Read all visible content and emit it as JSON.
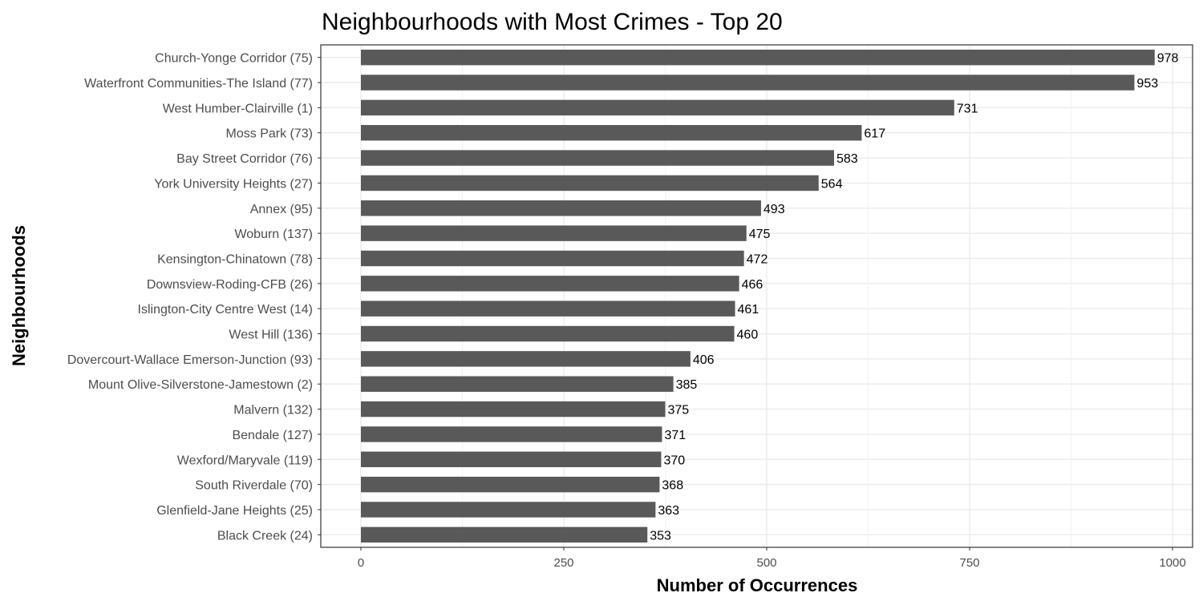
{
  "chart_data": {
    "type": "bar",
    "orientation": "horizontal",
    "title": "Neighbourhoods with Most Crimes - Top 20",
    "xlabel": "Number of Occurrences",
    "ylabel": "Neighbourhoods",
    "xlim": [
      0,
      1000
    ],
    "xticks": [
      0,
      250,
      500,
      750,
      1000
    ],
    "grid": true,
    "bar_color": "#595959",
    "categories": [
      "Church-Yonge Corridor (75)",
      "Waterfront Communities-The Island (77)",
      "West Humber-Clairville (1)",
      "Moss Park (73)",
      "Bay Street Corridor (76)",
      "York University Heights (27)",
      "Annex (95)",
      "Woburn (137)",
      "Kensington-Chinatown (78)",
      "Downsview-Roding-CFB (26)",
      "Islington-City Centre West (14)",
      "West Hill (136)",
      "Dovercourt-Wallace Emerson-Junction (93)",
      "Mount Olive-Silverstone-Jamestown (2)",
      "Malvern (132)",
      "Bendale (127)",
      "Wexford/Maryvale (119)",
      "South Riverdale (70)",
      "Glenfield-Jane Heights (25)",
      "Black Creek (24)"
    ],
    "values": [
      978,
      953,
      731,
      617,
      583,
      564,
      493,
      475,
      472,
      466,
      461,
      460,
      406,
      385,
      375,
      371,
      370,
      368,
      363,
      353
    ]
  }
}
